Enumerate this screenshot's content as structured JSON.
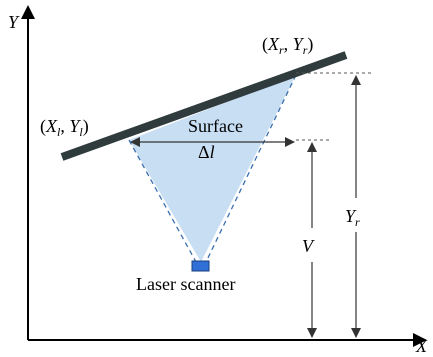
{
  "axes": {
    "y_label": "Y",
    "x_label": "X"
  },
  "points": {
    "left": {
      "open": "(",
      "x": "X",
      "x_sub": "l",
      "sep": ", ",
      "y": "Y",
      "y_sub": "l",
      "close": ")"
    },
    "right": {
      "open": "(",
      "x": "X",
      "x_sub": "r",
      "sep": ", ",
      "y": "Y",
      "y_sub": "r",
      "close": ")"
    }
  },
  "surface": {
    "label": "Surface",
    "width_symbol": "Δ",
    "width_var": "l"
  },
  "dimensions": {
    "v_label": "V",
    "yr_label": "Y",
    "yr_sub": "r"
  },
  "scanner": {
    "label": "Laser scanner"
  },
  "colors": {
    "surface_bar": "#2f3b3d",
    "scan_fill": "#c8def3",
    "scanner_box": "#2f6fd6",
    "beam": "#3a6fb0"
  }
}
